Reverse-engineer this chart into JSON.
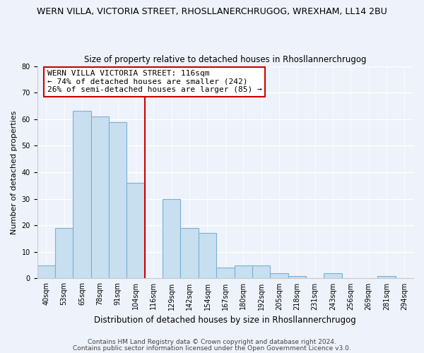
{
  "title": "WERN VILLA, VICTORIA STREET, RHOSLLANERCHRUGOG, WREXHAM, LL14 2BU",
  "subtitle": "Size of property relative to detached houses in Rhosllannerchrugog",
  "xlabel": "Distribution of detached houses by size in Rhosllannerchrugog",
  "ylabel": "Number of detached properties",
  "bin_labels": [
    "40sqm",
    "53sqm",
    "65sqm",
    "78sqm",
    "91sqm",
    "104sqm",
    "116sqm",
    "129sqm",
    "142sqm",
    "154sqm",
    "167sqm",
    "180sqm",
    "192sqm",
    "205sqm",
    "218sqm",
    "231sqm",
    "243sqm",
    "256sqm",
    "269sqm",
    "281sqm",
    "294sqm"
  ],
  "bar_heights": [
    5,
    19,
    63,
    61,
    59,
    36,
    0,
    30,
    19,
    17,
    4,
    5,
    5,
    2,
    1,
    0,
    2,
    0,
    0,
    1,
    0
  ],
  "bar_color": "#c8dff0",
  "bar_edge_color": "#7ab0d4",
  "vline_color": "#cc0000",
  "annotation_title": "WERN VILLA VICTORIA STREET: 116sqm",
  "annotation_line1": "← 74% of detached houses are smaller (242)",
  "annotation_line2": "26% of semi-detached houses are larger (85) →",
  "ylim": [
    0,
    80
  ],
  "yticks": [
    0,
    10,
    20,
    30,
    40,
    50,
    60,
    70,
    80
  ],
  "footnote1": "Contains HM Land Registry data © Crown copyright and database right 2024.",
  "footnote2": "Contains public sector information licensed under the Open Government Licence v3.0.",
  "bg_color": "#eef2fb",
  "grid_color": "#ffffff",
  "title_fontsize": 9,
  "subtitle_fontsize": 8.5,
  "ylabel_fontsize": 8,
  "xlabel_fontsize": 8.5,
  "tick_fontsize": 7,
  "annotation_fontsize": 8,
  "footnote_fontsize": 6.5
}
